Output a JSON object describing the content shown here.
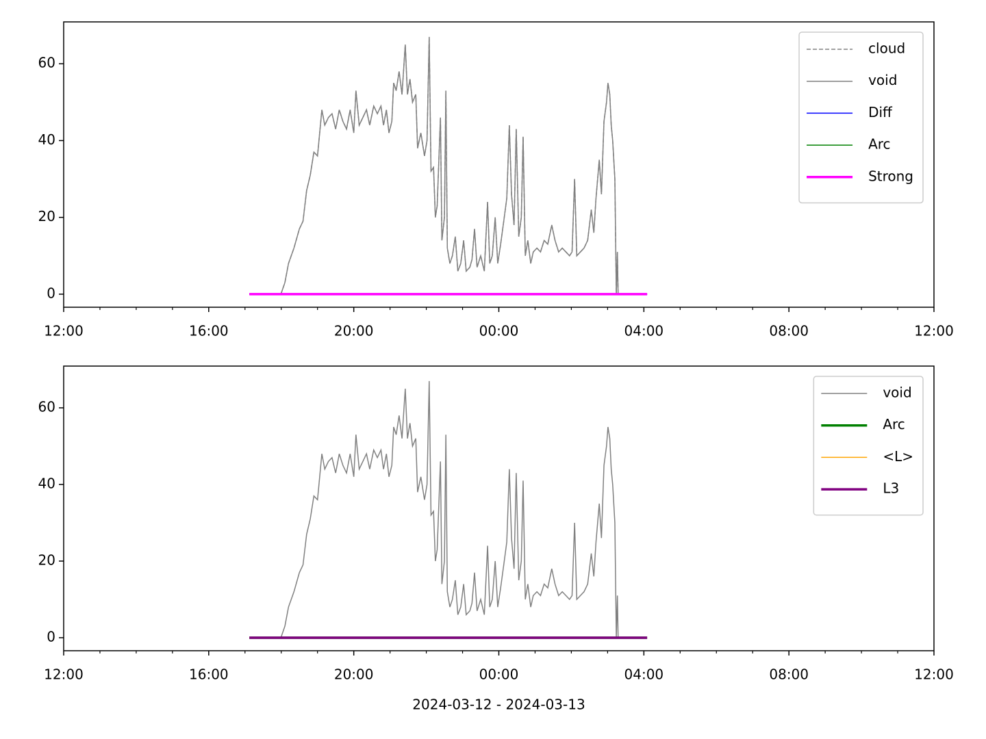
{
  "chart_data": [
    {
      "type": "line",
      "xlim": [
        0,
        24
      ],
      "ylim": [
        -3.4,
        70.9
      ],
      "xticks": [
        {
          "value": 0,
          "label": "12:00"
        },
        {
          "value": 4,
          "label": "16:00"
        },
        {
          "value": 8,
          "label": "20:00"
        },
        {
          "value": 12,
          "label": "00:00"
        },
        {
          "value": 16,
          "label": "04:00"
        },
        {
          "value": 20,
          "label": "08:00"
        },
        {
          "value": 24,
          "label": "12:00"
        }
      ],
      "xminorticks": [
        1,
        2,
        3,
        5,
        6,
        7,
        9,
        10,
        11,
        13,
        14,
        15,
        17,
        18,
        19,
        21,
        22,
        23
      ],
      "yticks": [
        0,
        20,
        40,
        60
      ],
      "legend": "upper right",
      "series": [
        {
          "name": "cloud",
          "color": "#808080",
          "linestyle": "dashed",
          "linewidth": 1.5,
          "x": [
            5.99,
            6.1,
            6.2,
            6.35,
            6.5,
            6.6,
            6.7,
            6.8,
            6.9,
            7.0,
            7.12,
            7.2,
            7.3,
            7.4,
            7.5,
            7.6,
            7.7,
            7.8,
            7.9,
            8.0,
            8.06,
            8.15,
            8.25,
            8.35,
            8.44,
            8.55,
            8.65,
            8.75,
            8.82,
            8.9,
            8.97,
            9.05,
            9.1,
            9.17,
            9.25,
            9.33,
            9.42,
            9.48,
            9.55,
            9.62,
            9.71,
            9.76,
            9.85,
            9.95,
            10.02,
            10.08,
            10.13,
            10.2,
            10.25,
            10.3,
            10.39,
            10.43,
            10.5,
            10.54,
            10.58,
            10.65,
            10.72,
            10.8,
            10.87,
            10.95,
            11.03,
            11.1,
            11.2,
            11.26,
            11.33,
            11.4,
            11.5,
            11.6,
            11.69,
            11.75,
            11.82,
            11.9,
            11.97,
            12.05,
            12.15,
            12.22,
            12.29,
            12.35,
            12.42,
            12.48,
            12.55,
            12.62,
            12.67,
            12.73,
            12.8,
            12.88,
            12.95,
            13.05,
            13.15,
            13.25,
            13.35,
            13.46,
            13.55,
            13.65,
            13.75,
            13.85,
            13.95,
            14.02,
            14.09,
            14.15,
            14.25,
            14.35,
            14.45,
            14.55,
            14.62,
            14.68,
            14.77,
            14.83,
            14.9,
            14.97,
            15.01,
            15.06,
            15.1,
            15.14,
            15.2,
            15.24,
            15.27,
            15.29
          ],
          "values": [
            0,
            3,
            8,
            12,
            17,
            19,
            27,
            31,
            37,
            36,
            48,
            44,
            46,
            47,
            43,
            48,
            45,
            43,
            48,
            42,
            53,
            44,
            46,
            48,
            44,
            49,
            47,
            49,
            44,
            48,
            42,
            45,
            55,
            53,
            58,
            52,
            65,
            52,
            56,
            50,
            52,
            38,
            42,
            36,
            40,
            67,
            32,
            33,
            20,
            23,
            46,
            14,
            20,
            53,
            12,
            8,
            10,
            15,
            6,
            8,
            14,
            6,
            7,
            9,
            17,
            7,
            10,
            6,
            24,
            8,
            10,
            20,
            8,
            13,
            20,
            25,
            44,
            26,
            18,
            43,
            15,
            20,
            41,
            10,
            14,
            8,
            11,
            12,
            11,
            14,
            13,
            18,
            14,
            11,
            12,
            11,
            10,
            11,
            30,
            10,
            11,
            12,
            14,
            22,
            16,
            25,
            35,
            26,
            45,
            50,
            55,
            52,
            44,
            40,
            30,
            0,
            11,
            0
          ]
        },
        {
          "name": "void",
          "color": "#808080",
          "linestyle": "solid",
          "linewidth": 1.5,
          "x": [
            5.99,
            6.1,
            6.2,
            6.35,
            6.5,
            6.6,
            6.7,
            6.8,
            6.9,
            7.0,
            7.12,
            7.2,
            7.3,
            7.4,
            7.5,
            7.6,
            7.7,
            7.8,
            7.9,
            8.0,
            8.06,
            8.15,
            8.25,
            8.35,
            8.44,
            8.55,
            8.65,
            8.75,
            8.82,
            8.9,
            8.97,
            9.05,
            9.1,
            9.17,
            9.25,
            9.33,
            9.42,
            9.48,
            9.55,
            9.62,
            9.71,
            9.76,
            9.85,
            9.95,
            10.02,
            10.08,
            10.13,
            10.2,
            10.25,
            10.3,
            10.39,
            10.43,
            10.5,
            10.54,
            10.58,
            10.65,
            10.72,
            10.8,
            10.87,
            10.95,
            11.03,
            11.1,
            11.2,
            11.26,
            11.33,
            11.4,
            11.5,
            11.6,
            11.69,
            11.75,
            11.82,
            11.9,
            11.97,
            12.05,
            12.15,
            12.22,
            12.29,
            12.35,
            12.42,
            12.48,
            12.55,
            12.62,
            12.67,
            12.73,
            12.8,
            12.88,
            12.95,
            13.05,
            13.15,
            13.25,
            13.35,
            13.46,
            13.55,
            13.65,
            13.75,
            13.85,
            13.95,
            14.02,
            14.09,
            14.15,
            14.25,
            14.35,
            14.45,
            14.55,
            14.62,
            14.68,
            14.77,
            14.83,
            14.9,
            14.97,
            15.01,
            15.06,
            15.1,
            15.14,
            15.2,
            15.24,
            15.27,
            15.29
          ],
          "values": [
            0,
            3,
            8,
            12,
            17,
            19,
            27,
            31,
            37,
            36,
            48,
            44,
            46,
            47,
            43,
            48,
            45,
            43,
            48,
            42,
            53,
            44,
            46,
            48,
            44,
            49,
            47,
            49,
            44,
            48,
            42,
            45,
            55,
            53,
            58,
            52,
            65,
            52,
            56,
            50,
            52,
            38,
            42,
            36,
            40,
            67,
            32,
            33,
            20,
            23,
            46,
            14,
            20,
            53,
            12,
            8,
            10,
            15,
            6,
            8,
            14,
            6,
            7,
            9,
            17,
            7,
            10,
            6,
            24,
            8,
            10,
            20,
            8,
            13,
            20,
            25,
            44,
            26,
            18,
            43,
            15,
            20,
            41,
            10,
            14,
            8,
            11,
            12,
            11,
            14,
            13,
            18,
            14,
            11,
            12,
            11,
            10,
            11,
            30,
            10,
            11,
            12,
            14,
            22,
            16,
            25,
            35,
            26,
            45,
            50,
            55,
            52,
            44,
            40,
            30,
            0,
            11,
            0
          ]
        },
        {
          "name": "Diff",
          "color": "#0000ff",
          "linestyle": "solid",
          "linewidth": 1.5,
          "x": [
            5.12,
            16.09
          ],
          "values": [
            0,
            0
          ]
        },
        {
          "name": "Arc",
          "color": "#008000",
          "linestyle": "solid",
          "linewidth": 1.5,
          "x": [
            5.12,
            16.09
          ],
          "values": [
            0,
            0
          ]
        },
        {
          "name": "Strong",
          "color": "#ff00ff",
          "linestyle": "solid",
          "linewidth": 3.5,
          "x": [
            5.12,
            16.09
          ],
          "values": [
            0,
            0
          ]
        }
      ]
    },
    {
      "type": "line",
      "xlim": [
        0,
        24
      ],
      "ylim": [
        -3.4,
        70.9
      ],
      "xticks": [
        {
          "value": 0,
          "label": "12:00"
        },
        {
          "value": 4,
          "label": "16:00"
        },
        {
          "value": 8,
          "label": "20:00"
        },
        {
          "value": 12,
          "label": "00:00"
        },
        {
          "value": 16,
          "label": "04:00"
        },
        {
          "value": 20,
          "label": "08:00"
        },
        {
          "value": 24,
          "label": "12:00"
        }
      ],
      "xminorticks": [
        1,
        2,
        3,
        5,
        6,
        7,
        9,
        10,
        11,
        13,
        14,
        15,
        17,
        18,
        19,
        21,
        22,
        23
      ],
      "yticks": [
        0,
        20,
        40,
        60
      ],
      "xlabel": "2024-03-12 - 2024-03-13",
      "legend": "upper right",
      "series": [
        {
          "name": "void",
          "color": "#808080",
          "linestyle": "solid",
          "linewidth": 1.5,
          "x": [
            5.99,
            6.1,
            6.2,
            6.35,
            6.5,
            6.6,
            6.7,
            6.8,
            6.9,
            7.0,
            7.12,
            7.2,
            7.3,
            7.4,
            7.5,
            7.6,
            7.7,
            7.8,
            7.9,
            8.0,
            8.06,
            8.15,
            8.25,
            8.35,
            8.44,
            8.55,
            8.65,
            8.75,
            8.82,
            8.9,
            8.97,
            9.05,
            9.1,
            9.17,
            9.25,
            9.33,
            9.42,
            9.48,
            9.55,
            9.62,
            9.71,
            9.76,
            9.85,
            9.95,
            10.02,
            10.08,
            10.13,
            10.2,
            10.25,
            10.3,
            10.39,
            10.43,
            10.5,
            10.54,
            10.58,
            10.65,
            10.72,
            10.8,
            10.87,
            10.95,
            11.03,
            11.1,
            11.2,
            11.26,
            11.33,
            11.4,
            11.5,
            11.6,
            11.69,
            11.75,
            11.82,
            11.9,
            11.97,
            12.05,
            12.15,
            12.22,
            12.29,
            12.35,
            12.42,
            12.48,
            12.55,
            12.62,
            12.67,
            12.73,
            12.8,
            12.88,
            12.95,
            13.05,
            13.15,
            13.25,
            13.35,
            13.46,
            13.55,
            13.65,
            13.75,
            13.85,
            13.95,
            14.02,
            14.09,
            14.15,
            14.25,
            14.35,
            14.45,
            14.55,
            14.62,
            14.68,
            14.77,
            14.83,
            14.9,
            14.97,
            15.01,
            15.06,
            15.1,
            15.14,
            15.2,
            15.24,
            15.27,
            15.29
          ],
          "values": [
            0,
            3,
            8,
            12,
            17,
            19,
            27,
            31,
            37,
            36,
            48,
            44,
            46,
            47,
            43,
            48,
            45,
            43,
            48,
            42,
            53,
            44,
            46,
            48,
            44,
            49,
            47,
            49,
            44,
            48,
            42,
            45,
            55,
            53,
            58,
            52,
            65,
            52,
            56,
            50,
            52,
            38,
            42,
            36,
            40,
            67,
            32,
            33,
            20,
            23,
            46,
            14,
            20,
            53,
            12,
            8,
            10,
            15,
            6,
            8,
            14,
            6,
            7,
            9,
            17,
            7,
            10,
            6,
            24,
            8,
            10,
            20,
            8,
            13,
            20,
            25,
            44,
            26,
            18,
            43,
            15,
            20,
            41,
            10,
            14,
            8,
            11,
            12,
            11,
            14,
            13,
            18,
            14,
            11,
            12,
            11,
            10,
            11,
            30,
            10,
            11,
            12,
            14,
            22,
            16,
            25,
            35,
            26,
            45,
            50,
            55,
            52,
            44,
            40,
            30,
            0,
            11,
            0
          ]
        },
        {
          "name": "Arc",
          "color": "#008000",
          "linestyle": "solid",
          "linewidth": 3.5,
          "x": [
            5.12,
            16.09
          ],
          "values": [
            0,
            0
          ]
        },
        {
          "name": "<L>",
          "color": "#ffa500",
          "linestyle": "solid",
          "linewidth": 1.5,
          "x": [
            5.12,
            16.09
          ],
          "values": [
            0,
            0
          ]
        },
        {
          "name": "L3",
          "color": "#800080",
          "linestyle": "solid",
          "linewidth": 3.5,
          "x": [
            5.12,
            16.09
          ],
          "values": [
            0,
            0
          ]
        }
      ]
    }
  ]
}
